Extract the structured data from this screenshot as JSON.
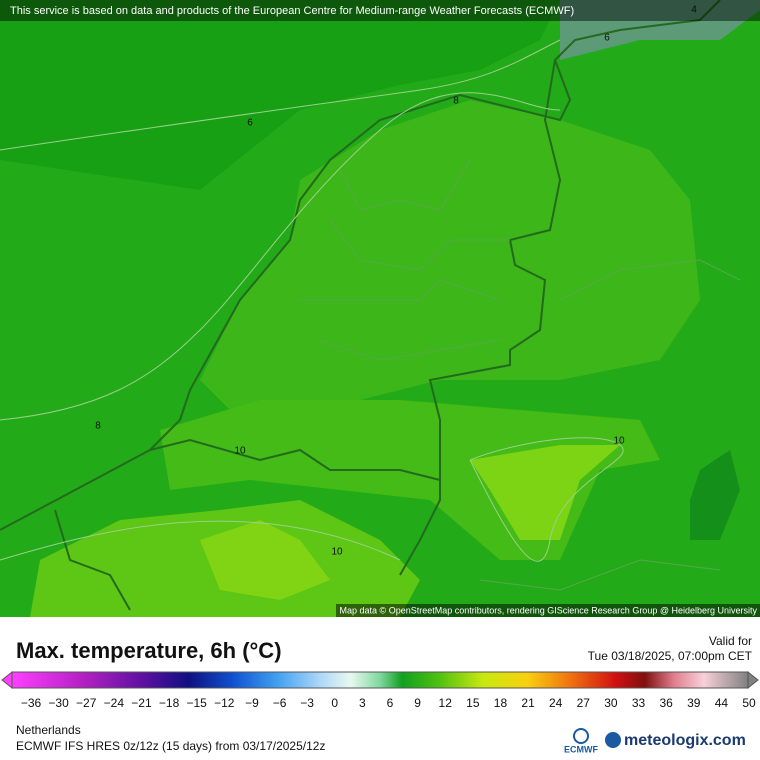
{
  "banner": "This service is based on data and products of the European Centre for Medium-range Weather Forecasts (ECMWF)",
  "map": {
    "contour_labels": [
      "4",
      "6",
      "6",
      "8",
      "8",
      "10",
      "10",
      "10"
    ],
    "attribution": "Map data © OpenStreetMap contributors, rendering GIScience Research Group @ Heidelberg University"
  },
  "header": {
    "title": "Max. temperature, 6h (°C)",
    "valid_label": "Valid for",
    "valid_time": "Tue 03/18/2025, 07:00pm CET"
  },
  "legend": {
    "ticks": [
      "−36",
      "−30",
      "−27",
      "−24",
      "−21",
      "−18",
      "−15",
      "−12",
      "−9",
      "−6",
      "−3",
      "0",
      "3",
      "6",
      "9",
      "12",
      "15",
      "18",
      "21",
      "24",
      "27",
      "30",
      "33",
      "36",
      "39",
      "44",
      "50"
    ]
  },
  "footer": {
    "region": "Netherlands",
    "model": "ECMWF IFS HRES 0z/12z (15 days) from 03/17/2025/12z",
    "ecmwf": "ECMWF",
    "brand": "meteologix.com"
  }
}
